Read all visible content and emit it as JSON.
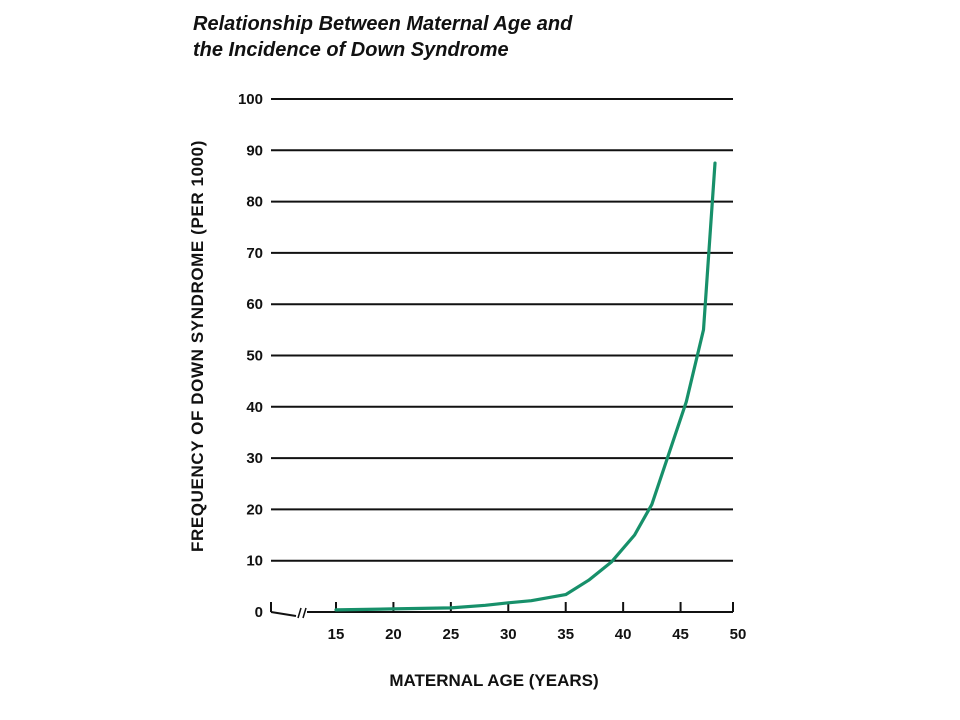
{
  "chart_data": {
    "type": "line",
    "title": [
      "Relationship Between Maternal Age and",
      "the Incidence of Down Syndrome"
    ],
    "xlabel": "MATERNAL AGE (YEARS)",
    "ylabel": "FREQUENCY OF DOWN SYNDROME (PER 1000)",
    "xlim": [
      15,
      50
    ],
    "ylim": [
      0,
      100
    ],
    "x_ticks": [
      15,
      20,
      25,
      30,
      35,
      40,
      45,
      50
    ],
    "y_ticks": [
      0,
      10,
      20,
      30,
      40,
      50,
      60,
      70,
      80,
      90,
      100
    ],
    "grid": "horizontal",
    "axis_break": true,
    "series": [
      {
        "color": "#17906a",
        "x": [
          15,
          20,
          25,
          28,
          30,
          32,
          35,
          37,
          39,
          41,
          42.5,
          44,
          45.5,
          47,
          48
        ],
        "y": [
          0.4,
          0.6,
          0.8,
          1.3,
          1.8,
          2.2,
          3.4,
          6.2,
          9.8,
          15,
          21,
          31,
          41,
          55,
          87.5
        ]
      }
    ]
  }
}
